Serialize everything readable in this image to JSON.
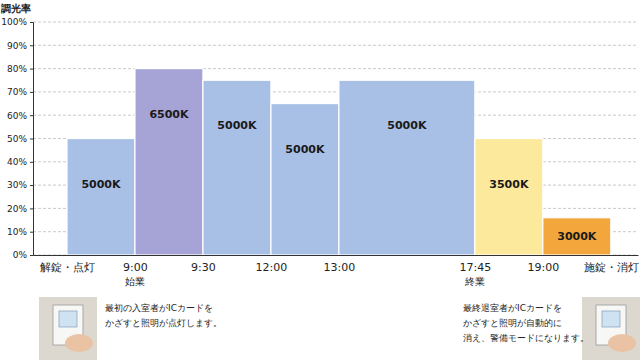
{
  "chart_data": {
    "type": "bar",
    "ylabel": "調光率",
    "bins": [
      1,
      2,
      3,
      4,
      5,
      7,
      8,
      9
    ],
    "values": [
      50,
      80,
      75,
      65,
      75,
      50,
      16
    ],
    "colors": [
      "#a9c0e6",
      "#a6a4d6",
      "#a9c0e6",
      "#a9c0e6",
      "#a9c0e6",
      "#fde99c",
      "#f3a63c"
    ],
    "bar_labels": [
      "5000K",
      "6500K",
      "5000K",
      "5000K",
      "5000K",
      "3500K",
      "3000K"
    ],
    "xlim": [
      0.5,
      9.4
    ],
    "xticks": [
      {
        "value": 1,
        "label": "解錠・点灯"
      },
      {
        "value": 2,
        "label": "9:00"
      },
      {
        "value": 3,
        "label": "9:30"
      },
      {
        "value": 4,
        "label": "12:00"
      },
      {
        "value": 5,
        "label": "13:00"
      },
      {
        "value": 7,
        "label": "17:45"
      },
      {
        "value": 8,
        "label": "19:00"
      },
      {
        "value": 9,
        "label": "施錠・消灯"
      }
    ],
    "ylim": [
      0,
      100
    ],
    "yticks": [
      {
        "value": 0,
        "label": "0%"
      },
      {
        "value": 10,
        "label": "10%"
      },
      {
        "value": 20,
        "label": "20%"
      },
      {
        "value": 30,
        "label": "30%"
      },
      {
        "value": 40,
        "label": "40%"
      },
      {
        "value": 50,
        "label": "50%"
      },
      {
        "value": 60,
        "label": "60%"
      },
      {
        "value": 70,
        "label": "70%"
      },
      {
        "value": 80,
        "label": "80%"
      },
      {
        "value": 90,
        "label": "90%"
      },
      {
        "value": 100,
        "label": "100%"
      }
    ],
    "grid": true,
    "annotations": [
      {
        "text": "始業",
        "x": 2
      },
      {
        "text": "終業",
        "x": 7
      },
      {
        "text": [
          "最初の入室者がICカードを",
          "かざすと照明が点灯します。"
        ]
      },
      {
        "text": [
          "最終退室者がICカードを",
          "かざすと照明が自動的に",
          "消え、警備モードになります。"
        ]
      }
    ]
  }
}
